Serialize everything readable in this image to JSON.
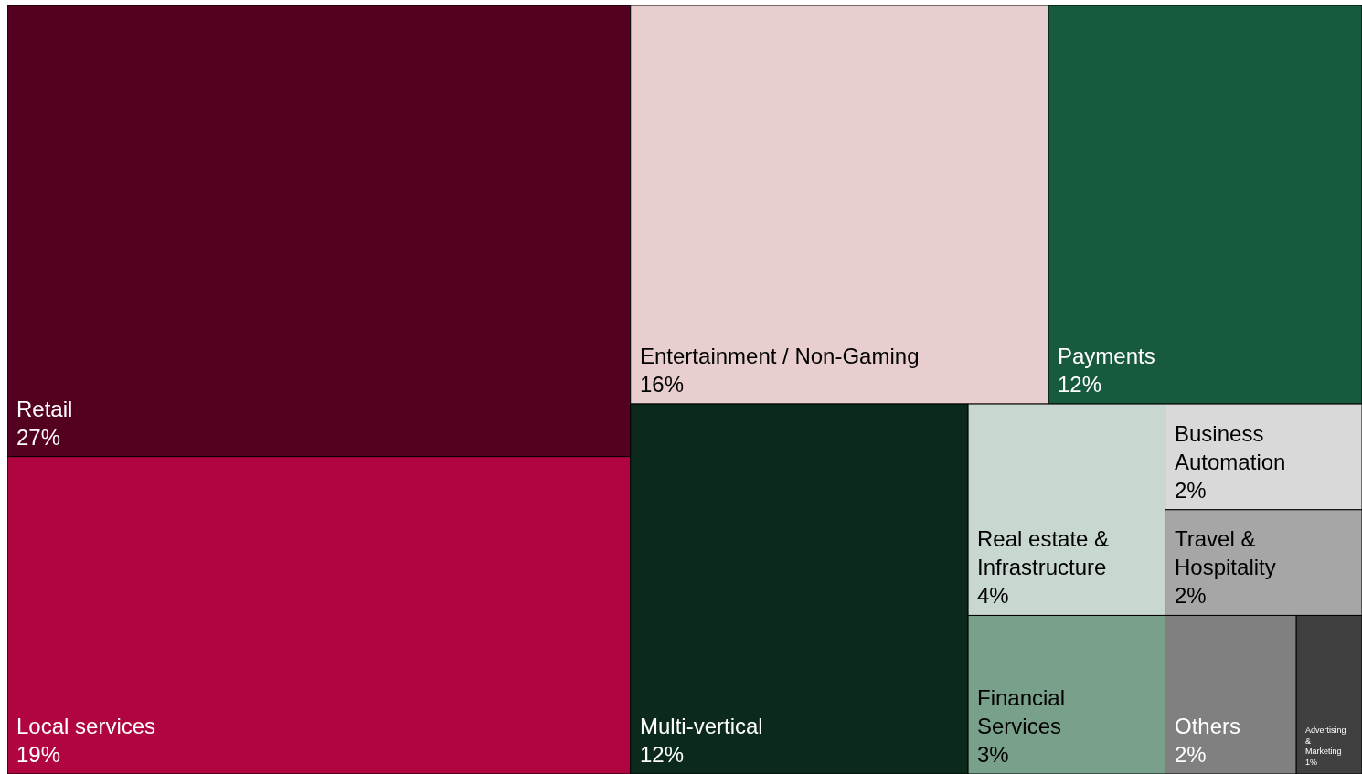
{
  "chart_data": {
    "type": "other",
    "categories": [
      "Retail",
      "Local services",
      "Entertainment / Non-Gaming",
      "Payments",
      "Multi-vertical",
      "Real estate & Infrastructure",
      "Financial Services",
      "Business Automation",
      "Travel & Hospitality",
      "Others",
      "Advertising & Marketing"
    ],
    "values": [
      27,
      19,
      16,
      12,
      12,
      4,
      3,
      2,
      2,
      2,
      1
    ],
    "value_labels": [
      "27%",
      "19%",
      "16%",
      "12%",
      "12%",
      "4%",
      "3%",
      "2%",
      "2%",
      "2%",
      "1%"
    ],
    "colors": [
      "#540020",
      "#b00540",
      "#e8cece",
      "#175a3e",
      "#0b2a1c",
      "#c8d8d0",
      "#78a08a",
      "#d9d9d9",
      "#a6a6a6",
      "#808080",
      "#404040"
    ]
  }
}
